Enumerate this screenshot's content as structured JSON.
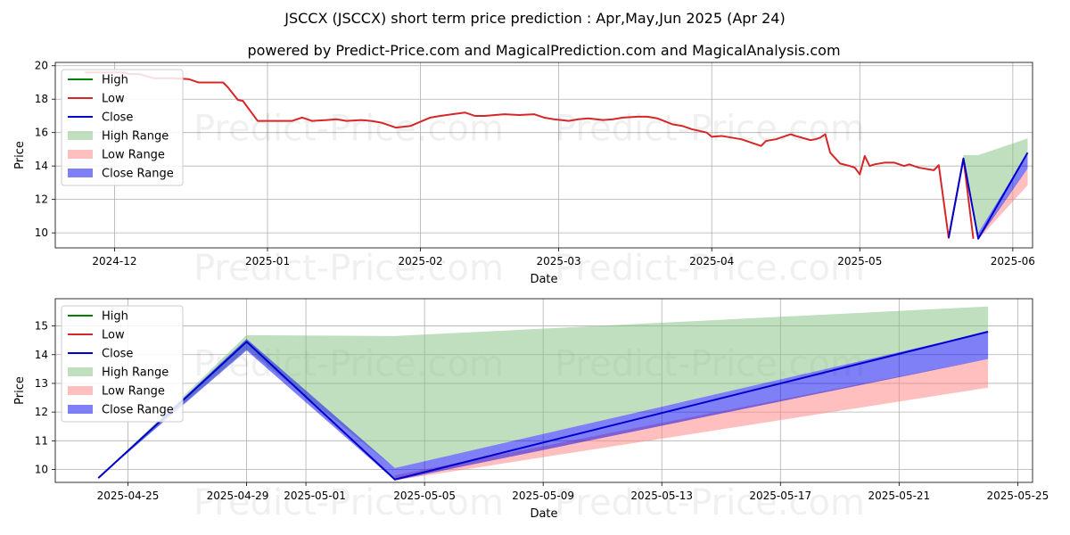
{
  "title": "JSCCX (JSCCX) short term price prediction : Apr,May,Jun 2025 (Apr 24)",
  "subtitle": "powered by Predict-Price.com and MagicalPrediction.com and MagicalAnalysis.com",
  "watermark": "Predict-Price.com",
  "colors": {
    "high": "#008000",
    "low": "#d62728",
    "close": "#0000cc",
    "high_range": "#80c080",
    "low_range": "#ff8080",
    "close_range": "#0000ee"
  },
  "legend": [
    "High",
    "Low",
    "Close",
    "High Range",
    "Low Range",
    "Close Range"
  ],
  "chart_data": [
    {
      "type": "line",
      "xlabel": "Date",
      "ylabel": "Price",
      "x_ticks": [
        "2024-12",
        "2025-01",
        "2025-02",
        "2025-03",
        "2025-04",
        "2025-05",
        "2025-06"
      ],
      "y_ticks": [
        "10",
        "12",
        "14",
        "16",
        "18",
        "20"
      ],
      "ylim": [
        9.1,
        20.2
      ],
      "series": [
        {
          "name": "Low",
          "points": [
            [
              "2024-11-25",
              19.6
            ],
            [
              "2024-11-27",
              19.6
            ],
            [
              "2024-11-29",
              19.6
            ],
            [
              "2024-12-02",
              19.6
            ],
            [
              "2024-12-03",
              19.6
            ],
            [
              "2024-12-04",
              19.5
            ],
            [
              "2024-12-06",
              19.5
            ],
            [
              "2024-12-09",
              19.25
            ],
            [
              "2024-12-11",
              19.25
            ],
            [
              "2024-12-13",
              19.25
            ],
            [
              "2024-12-16",
              19.2
            ],
            [
              "2024-12-18",
              19.0
            ],
            [
              "2024-12-20",
              19.0
            ],
            [
              "2024-12-23",
              19.0
            ],
            [
              "2024-12-24",
              18.7
            ],
            [
              "2024-12-26",
              17.95
            ],
            [
              "2024-12-27",
              17.9
            ],
            [
              "2024-12-30",
              16.7
            ],
            [
              "2025-01-02",
              16.7
            ],
            [
              "2025-01-06",
              16.7
            ],
            [
              "2025-01-08",
              16.9
            ],
            [
              "2025-01-10",
              16.7
            ],
            [
              "2025-01-13",
              16.75
            ],
            [
              "2025-01-15",
              16.8
            ],
            [
              "2025-01-17",
              16.7
            ],
            [
              "2025-01-20",
              16.75
            ],
            [
              "2025-01-22",
              16.7
            ],
            [
              "2025-01-24",
              16.6
            ],
            [
              "2025-01-27",
              16.3
            ],
            [
              "2025-01-30",
              16.4
            ],
            [
              "2025-02-03",
              16.9
            ],
            [
              "2025-02-05",
              17.0
            ],
            [
              "2025-02-10",
              17.2
            ],
            [
              "2025-02-12",
              17.0
            ],
            [
              "2025-02-14",
              17.0
            ],
            [
              "2025-02-18",
              17.1
            ],
            [
              "2025-02-21",
              17.05
            ],
            [
              "2025-02-24",
              17.1
            ],
            [
              "2025-02-26",
              16.9
            ],
            [
              "2025-02-28",
              16.8
            ],
            [
              "2025-03-03",
              16.7
            ],
            [
              "2025-03-05",
              16.8
            ],
            [
              "2025-03-07",
              16.85
            ],
            [
              "2025-03-10",
              16.75
            ],
            [
              "2025-03-12",
              16.8
            ],
            [
              "2025-03-14",
              16.9
            ],
            [
              "2025-03-17",
              16.95
            ],
            [
              "2025-03-19",
              16.95
            ],
            [
              "2025-03-21",
              16.85
            ],
            [
              "2025-03-24",
              16.5
            ],
            [
              "2025-03-26",
              16.4
            ],
            [
              "2025-03-28",
              16.2
            ],
            [
              "2025-03-31",
              16.0
            ],
            [
              "2025-04-01",
              15.75
            ],
            [
              "2025-04-03",
              15.8
            ],
            [
              "2025-04-07",
              15.6
            ],
            [
              "2025-04-09",
              15.4
            ],
            [
              "2025-04-11",
              15.2
            ],
            [
              "2025-04-12",
              15.5
            ],
            [
              "2025-04-14",
              15.6
            ],
            [
              "2025-04-15",
              15.7
            ],
            [
              "2025-04-16",
              15.8
            ],
            [
              "2025-04-17",
              15.9
            ],
            [
              "2025-04-18",
              15.8
            ],
            [
              "2025-04-21",
              15.55
            ],
            [
              "2025-04-22",
              15.6
            ],
            [
              "2025-04-23",
              15.7
            ],
            [
              "2025-04-24",
              15.9
            ],
            [
              "2025-04-25",
              14.8
            ],
            [
              "2025-04-27",
              14.15
            ],
            [
              "2025-04-29",
              14.0
            ],
            [
              "2025-04-30",
              13.9
            ],
            [
              "2025-05-01",
              13.5
            ],
            [
              "2025-05-02",
              14.6
            ],
            [
              "2025-05-03",
              14.0
            ],
            [
              "2025-05-04",
              14.1
            ],
            [
              "2025-05-06",
              14.2
            ],
            [
              "2025-05-08",
              14.2
            ],
            [
              "2025-05-09",
              14.1
            ],
            [
              "2025-05-10",
              14.0
            ],
            [
              "2025-05-11",
              14.1
            ],
            [
              "2025-05-13",
              13.9
            ],
            [
              "2025-05-16",
              13.75
            ],
            [
              "2025-05-17",
              14.05
            ],
            [
              "2025-05-19",
              9.7
            ],
            [
              "2025-05-22",
              14.45
            ],
            [
              "2025-05-24",
              9.65
            ]
          ]
        },
        {
          "name": "Close",
          "points": [
            [
              "2025-05-19",
              9.7
            ],
            [
              "2025-05-22",
              14.45
            ],
            [
              "2025-05-25",
              9.65
            ],
            [
              "2025-06-04",
              14.8
            ]
          ]
        },
        {
          "name": "High Range",
          "upper": [
            [
              "2025-05-22",
              14.65
            ],
            [
              "2025-05-25",
              14.65
            ],
            [
              "2025-06-04",
              15.65
            ]
          ],
          "lower": [
            [
              "2025-05-22",
              14.35
            ],
            [
              "2025-05-25",
              10.0
            ],
            [
              "2025-06-04",
              14.8
            ]
          ]
        },
        {
          "name": "Low Range",
          "upper": [
            [
              "2025-05-25",
              9.75
            ],
            [
              "2025-06-04",
              13.85
            ]
          ],
          "lower": [
            [
              "2025-05-25",
              9.6
            ],
            [
              "2025-06-04",
              12.85
            ]
          ]
        },
        {
          "name": "Close Range",
          "upper": [
            [
              "2025-05-25",
              10.0
            ],
            [
              "2025-06-04",
              14.8
            ]
          ],
          "lower": [
            [
              "2025-05-25",
              9.6
            ],
            [
              "2025-06-04",
              13.85
            ]
          ]
        }
      ]
    },
    {
      "type": "line",
      "xlabel": "Date",
      "ylabel": "Price",
      "x_ticks": [
        "2025-04-25",
        "2025-04-29",
        "2025-05-01",
        "2025-05-05",
        "2025-05-09",
        "2025-05-13",
        "2025-05-17",
        "2025-05-21",
        "2025-05-25"
      ],
      "y_ticks": [
        "10",
        "11",
        "12",
        "13",
        "14",
        "15"
      ],
      "ylim": [
        9.55,
        15.95
      ],
      "series": [
        {
          "name": "Close",
          "points": [
            [
              "2025-04-24",
              9.7
            ],
            [
              "2025-04-29",
              14.45
            ],
            [
              "2025-05-04",
              9.65
            ],
            [
              "2025-05-24",
              14.8
            ]
          ]
        },
        {
          "name": "High Range",
          "upper": [
            [
              "2025-04-24",
              9.7
            ],
            [
              "2025-04-29",
              14.68
            ],
            [
              "2025-05-04",
              14.65
            ],
            [
              "2025-05-24",
              15.68
            ]
          ],
          "lower": [
            [
              "2025-04-24",
              9.7
            ],
            [
              "2025-04-29",
              14.2
            ],
            [
              "2025-05-04",
              10.05
            ],
            [
              "2025-05-24",
              14.8
            ]
          ]
        },
        {
          "name": "Low Range",
          "upper": [
            [
              "2025-05-04",
              9.8
            ],
            [
              "2025-05-24",
              13.85
            ]
          ],
          "lower": [
            [
              "2025-05-04",
              9.62
            ],
            [
              "2025-05-24",
              12.85
            ]
          ]
        },
        {
          "name": "Close Range",
          "upper": [
            [
              "2025-04-24",
              9.7
            ],
            [
              "2025-04-29",
              14.55
            ],
            [
              "2025-05-04",
              10.05
            ],
            [
              "2025-05-24",
              14.8
            ]
          ],
          "lower": [
            [
              "2025-04-24",
              9.7
            ],
            [
              "2025-04-29",
              14.15
            ],
            [
              "2025-05-04",
              9.62
            ],
            [
              "2025-05-24",
              13.85
            ]
          ]
        }
      ]
    }
  ]
}
